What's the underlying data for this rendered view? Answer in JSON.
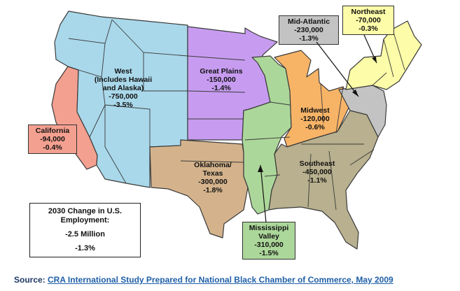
{
  "regions": [
    {
      "id": "west",
      "lines": [
        "West",
        "(Includes Hawaii",
        "and Alaska)",
        "-750,000",
        "-3.5%"
      ],
      "color": "#a9d8ea"
    },
    {
      "id": "california",
      "lines": [
        "California",
        "-94,000",
        "-0.4%"
      ],
      "color": "#f4a090"
    },
    {
      "id": "great-plains",
      "lines": [
        "Great Plains",
        "-150,000",
        "-1.4%"
      ],
      "color": "#c79cf0"
    },
    {
      "id": "oklahoma-texas",
      "lines": [
        "Oklahoma/",
        "Texas",
        "-300,000",
        "-1.8%"
      ],
      "color": "#d4b38c"
    },
    {
      "id": "mississippi-valley",
      "lines": [
        "Mississippi",
        "Valley",
        "-310,000",
        "-1.5%"
      ],
      "color": "#acd79a"
    },
    {
      "id": "midwest",
      "lines": [
        "Midwest",
        "-120,000",
        "-0.6%"
      ],
      "color": "#f7b467"
    },
    {
      "id": "southeast",
      "lines": [
        "Southeast",
        "-450,000",
        "-1.1%"
      ],
      "color": "#b8b08e"
    },
    {
      "id": "mid-atlantic",
      "lines": [
        "Mid-Atlantic",
        "-230,000",
        "-1.3%"
      ],
      "color": "#c3c3c3"
    },
    {
      "id": "northeast",
      "lines": [
        "Northeast",
        "-70,000",
        "-0.3%"
      ],
      "color": "#fdfca8"
    }
  ],
  "summary": {
    "line1": "2030 Change in U.S.",
    "line2": "Employment:",
    "total": "-2.5 Million",
    "percent": "-1.3%"
  },
  "source": {
    "prefix": "Source: ",
    "link_text": "CRA International Study Prepared for National Black Chamber of Commerce, May 2009"
  }
}
